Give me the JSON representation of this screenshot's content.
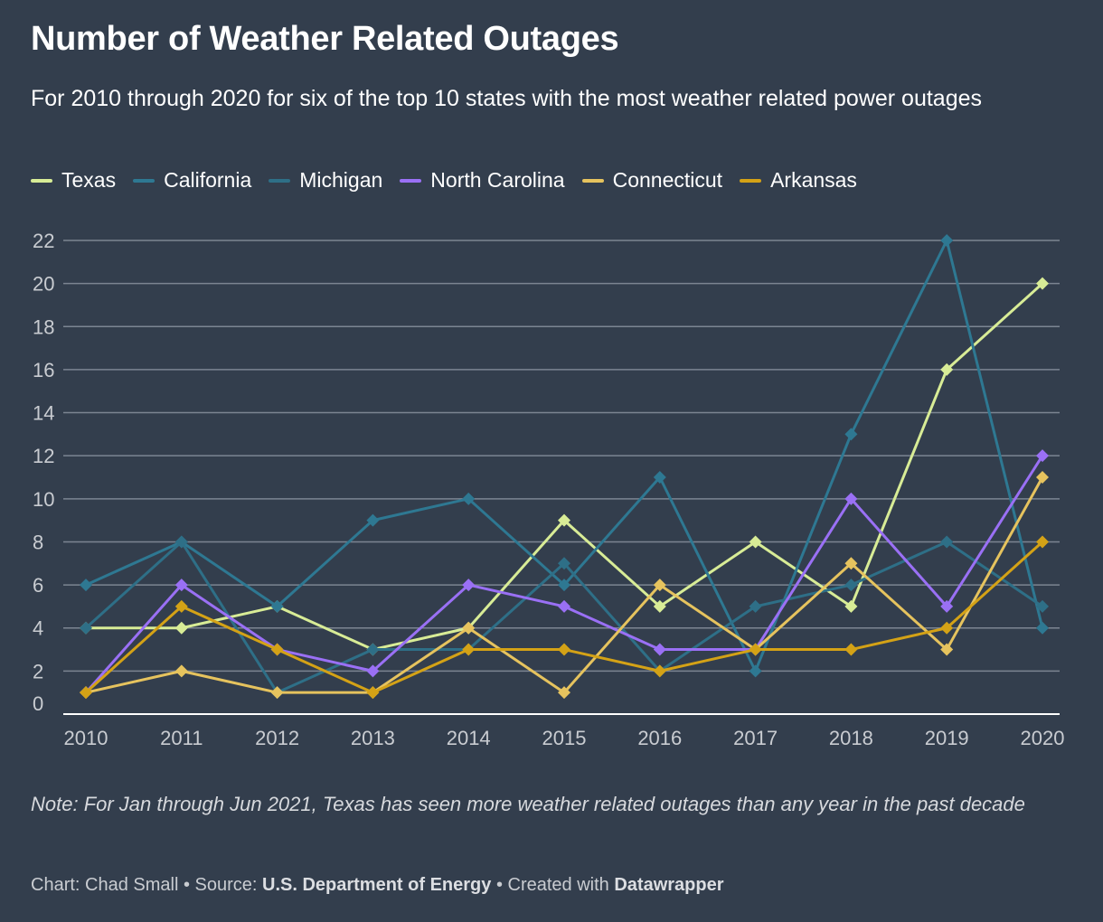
{
  "header": {
    "title": "Number of Weather Related Outages",
    "subtitle": "For 2010 through 2020 for six of the top 10 states with the most weather related power outages"
  },
  "chart_data": {
    "type": "line",
    "x": [
      2010,
      2011,
      2012,
      2013,
      2014,
      2015,
      2016,
      2017,
      2018,
      2019,
      2020
    ],
    "x_tick_labels": [
      "2010",
      "2011",
      "2012",
      "2013",
      "2014",
      "2015",
      "2016",
      "2017",
      "2018",
      "2019",
      "2020"
    ],
    "y_ticks": [
      0,
      2,
      4,
      6,
      8,
      10,
      12,
      14,
      16,
      18,
      20,
      22
    ],
    "ylim": [
      0,
      22
    ],
    "grid": true,
    "legend_position": "top-left",
    "marker": "diamond",
    "series": [
      {
        "name": "Texas",
        "color": "#d8ec96",
        "values": [
          4,
          4,
          5,
          3,
          4,
          9,
          5,
          8,
          5,
          16,
          20
        ]
      },
      {
        "name": "California",
        "color": "#2e7892",
        "values": [
          6,
          8,
          5,
          9,
          10,
          6,
          11,
          2,
          13,
          22,
          4
        ]
      },
      {
        "name": "Michigan",
        "color": "#2e6f87",
        "values": [
          4,
          8,
          1,
          3,
          3,
          7,
          2,
          5,
          6,
          8,
          5
        ]
      },
      {
        "name": "North Carolina",
        "color": "#9a70f5",
        "values": [
          1,
          6,
          3,
          2,
          6,
          5,
          3,
          3,
          10,
          5,
          12
        ]
      },
      {
        "name": "Connecticut",
        "color": "#e6c35e",
        "values": [
          1,
          2,
          1,
          1,
          4,
          1,
          6,
          3,
          7,
          3,
          11
        ]
      },
      {
        "name": "Arkansas",
        "color": "#d4a216",
        "values": [
          1,
          5,
          3,
          1,
          3,
          3,
          2,
          3,
          3,
          4,
          8
        ]
      }
    ]
  },
  "note": "Note: For Jan through Jun 2021, Texas has seen more weather related outages than any year in the past decade",
  "footer": {
    "chart_prefix": "Chart: Chad Small • Source: ",
    "source": "U.S. Department of Energy",
    "created_prefix": " • Created with ",
    "tool": "Datawrapper"
  }
}
